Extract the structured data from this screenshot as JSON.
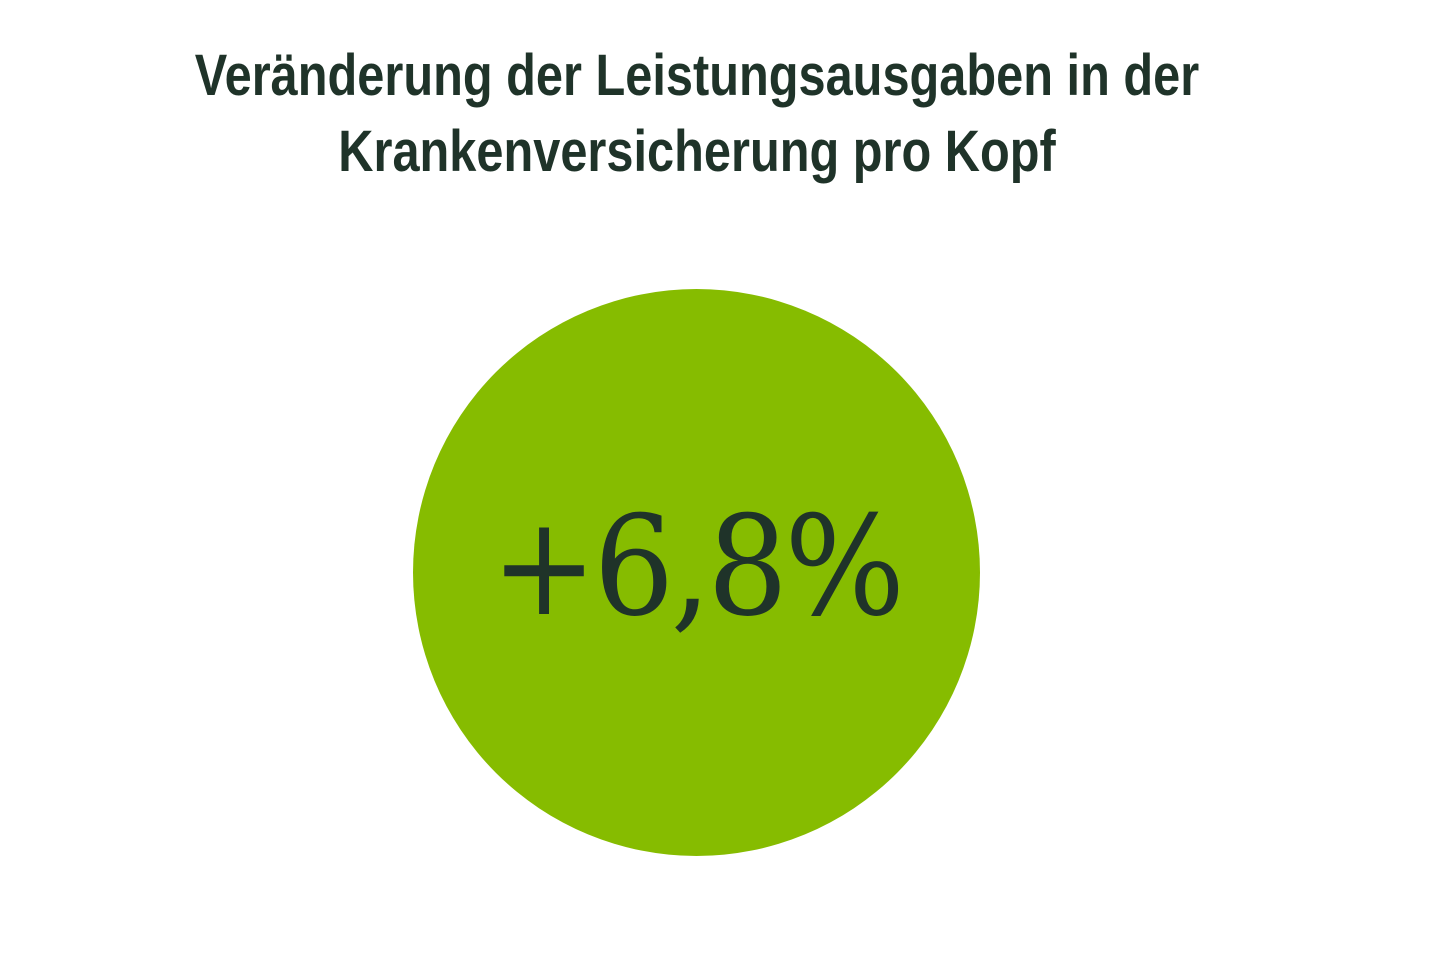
{
  "title": {
    "line1": "Veränderung der Leistungsausgaben in der",
    "line2": "Krankenversicherung pro Kopf"
  },
  "stat": {
    "value": "+6,8%",
    "circle_color": "#86bc00",
    "text_color": "#1f3329"
  },
  "colors": {
    "background": "#ffffff",
    "title": "#1f3329",
    "accent": "#86bc00"
  }
}
